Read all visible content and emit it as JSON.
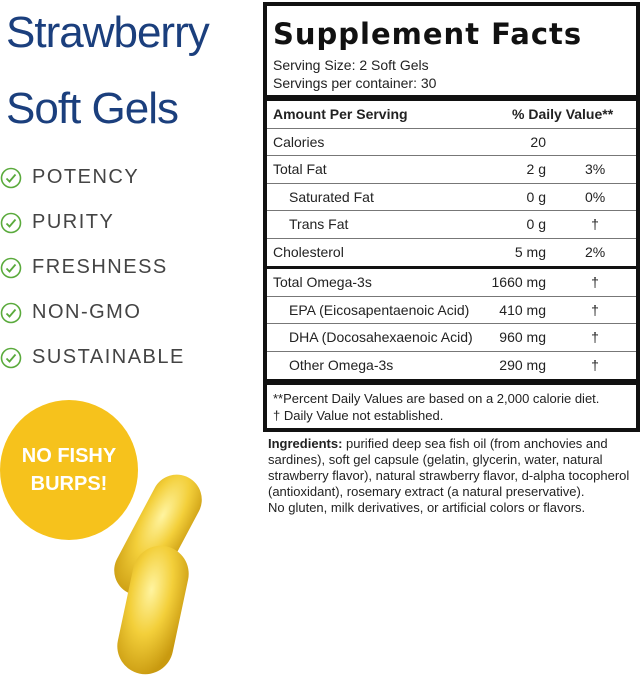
{
  "product": {
    "title_line1": "Strawberry",
    "title_line2": "Soft Gels",
    "title_color": "#1b3f7d",
    "benefits": [
      "POTENCY",
      "PURITY",
      "FRESHNESS",
      "NON-GMO",
      "SUSTAINABLE"
    ],
    "check_color": "#5aaa3c",
    "badge": {
      "line1": "NO FISHY",
      "line2": "BURPS!",
      "color": "#f6c21c"
    }
  },
  "facts": {
    "title": "Supplement Facts",
    "serving_size": "Serving Size: 2 Soft Gels",
    "servings_per_container": "Servings per container: 30",
    "header": {
      "amount": "Amount Per Serving",
      "dv": "% Daily Value**"
    },
    "rows": [
      {
        "name": "Calories",
        "amount": "20",
        "dv": ""
      },
      {
        "name": "Total Fat",
        "amount": "2 g",
        "dv": "3%"
      },
      {
        "name": "Saturated Fat",
        "amount": "0 g",
        "dv": "0%"
      },
      {
        "name": "Trans Fat",
        "amount": "0 g",
        "dv": "†"
      },
      {
        "name": "Cholesterol",
        "amount": "5 mg",
        "dv": "2%"
      },
      {
        "name": "Total Omega-3s",
        "amount": "1660 mg",
        "dv": "†"
      },
      {
        "name": "EPA (Eicosapentaenoic Acid)",
        "amount": "410 mg",
        "dv": "†"
      },
      {
        "name": "DHA (Docosahexaenoic Acid)",
        "amount": "960 mg",
        "dv": "†"
      },
      {
        "name": "Other Omega-3s",
        "amount": "290 mg",
        "dv": "†"
      }
    ],
    "footnote1": "**Percent Daily Values are based on a 2,000 calorie diet.",
    "footnote2": "†  Daily Value not established."
  },
  "ingredients": {
    "label": "Ingredients:",
    "lines": [
      " purified deep sea fish oil (from anchovies and",
      "sardines), soft gel capsule (gelatin, glycerin, water, natural",
      "strawberry flavor), natural strawberry flavor, d-alpha tocopherol",
      "(antioxidant), rosemary extract (a natural preservative).",
      "No gluten, milk derivatives, or artificial colors or flavors."
    ]
  }
}
